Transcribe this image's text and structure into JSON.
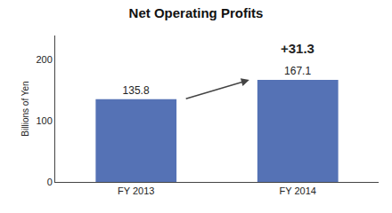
{
  "chart_data": {
    "type": "bar",
    "title": "Net Operating Profits",
    "ylabel": "Billions of Yen",
    "categories": [
      "FY 2013",
      "FY 2014"
    ],
    "values": [
      135.8,
      167.1
    ],
    "color": "#5572b5",
    "ylim": [
      0,
      240
    ],
    "yticks": [
      0,
      100,
      200
    ],
    "grid": false,
    "data_labels": true,
    "annotation": "+31.3"
  }
}
